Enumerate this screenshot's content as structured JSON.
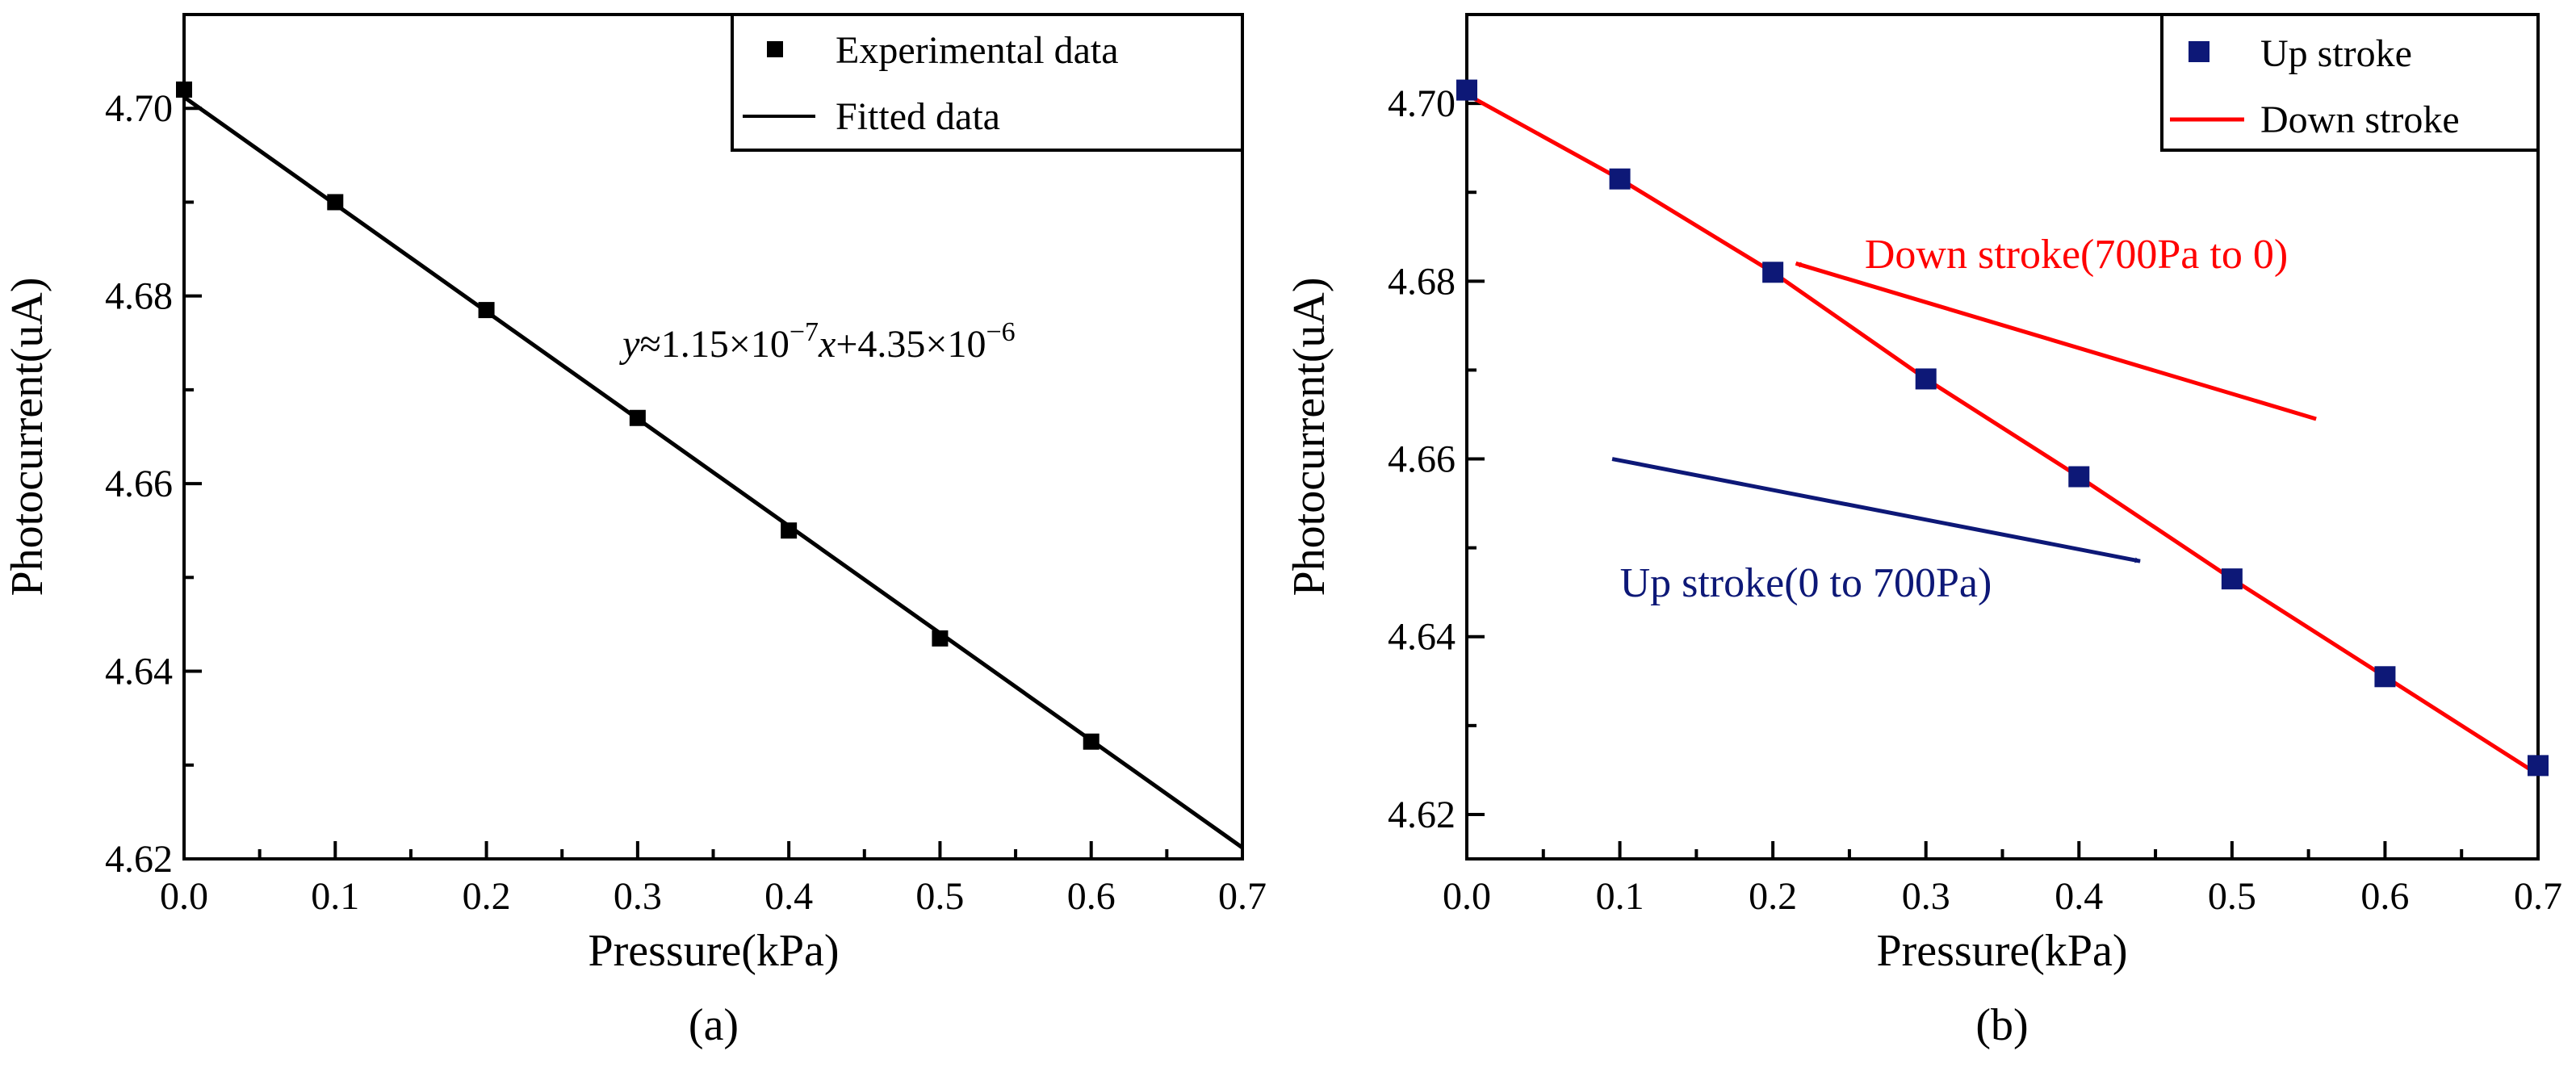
{
  "chart_data": [
    {
      "type": "scatter",
      "panel_label": "(a)",
      "xlabel": "Pressure(kPa)",
      "ylabel": "Photocurrent(uA)",
      "xlim": [
        0.0,
        0.7
      ],
      "ylim": [
        4.62,
        4.71
      ],
      "xticks": [
        0.0,
        0.1,
        0.2,
        0.3,
        0.4,
        0.5,
        0.6,
        0.7
      ],
      "xtick_labels": [
        "0.0",
        "0.1",
        "0.2",
        "0.3",
        "0.4",
        "0.5",
        "0.6",
        "0.7"
      ],
      "yticks": [
        4.62,
        4.64,
        4.66,
        4.68,
        4.7
      ],
      "ytick_labels": [
        "4.62",
        "4.64",
        "4.66",
        "4.68",
        "4.70"
      ],
      "series": [
        {
          "name": "Experimental data",
          "kind": "points",
          "color": "#000000",
          "x": [
            0.0,
            0.1,
            0.2,
            0.3,
            0.4,
            0.5,
            0.6
          ],
          "y": [
            4.702,
            4.69,
            4.6785,
            4.667,
            4.655,
            4.6435,
            4.6325
          ]
        },
        {
          "name": "Fitted data",
          "kind": "line",
          "color": "#000000",
          "x": [
            0.0,
            0.7
          ],
          "y": [
            4.7012,
            4.6212
          ]
        }
      ],
      "legend_position": "top-right",
      "annotations": [
        {
          "kind": "equation",
          "parts": {
            "y": "y",
            "approx": "≈1.15×10",
            "exp1": "−7",
            "x": "x",
            "plus": "+4.35×10",
            "exp2": "−6"
          },
          "x": 0.29,
          "y": 4.6735
        }
      ]
    },
    {
      "type": "scatter",
      "panel_label": "(b)",
      "xlabel": "Pressure(kPa)",
      "ylabel": "Photocurrent(uA)",
      "xlim": [
        0.0,
        0.7
      ],
      "ylim": [
        4.615,
        4.71
      ],
      "xticks": [
        0.0,
        0.1,
        0.2,
        0.3,
        0.4,
        0.5,
        0.6,
        0.7
      ],
      "xtick_labels": [
        "0.0",
        "0.1",
        "0.2",
        "0.3",
        "0.4",
        "0.5",
        "0.6",
        "0.7"
      ],
      "yticks": [
        4.62,
        4.64,
        4.66,
        4.68,
        4.7
      ],
      "ytick_labels": [
        "4.62",
        "4.64",
        "4.66",
        "4.68",
        "4.70"
      ],
      "series": [
        {
          "name": "Up stroke",
          "kind": "points",
          "color": "#0d1877",
          "x": [
            0.0,
            0.1,
            0.2,
            0.3,
            0.4,
            0.5,
            0.6,
            0.7
          ],
          "y": [
            4.7015,
            4.6915,
            4.681,
            4.669,
            4.658,
            4.6465,
            4.6355,
            4.6255
          ]
        },
        {
          "name": "Down stroke",
          "kind": "line",
          "color": "#ff0000",
          "x": [
            0.0,
            0.1,
            0.2,
            0.3,
            0.4,
            0.5,
            0.6,
            0.7
          ],
          "y": [
            4.701,
            4.6915,
            4.681,
            4.669,
            4.658,
            4.6465,
            4.6355,
            4.6245
          ]
        }
      ],
      "legend_position": "top-right",
      "annotations": [
        {
          "kind": "arrow",
          "text": "Down stroke(700Pa to 0)",
          "color": "#ff0000",
          "from": [
            0.555,
            4.6645
          ],
          "to": [
            0.215,
            4.682
          ],
          "text_x": 0.26,
          "text_y": 4.6815
        },
        {
          "kind": "arrow",
          "text": "Up stroke(0 to 700Pa)",
          "color": "#0d1877",
          "from": [
            0.095,
            4.66
          ],
          "to": [
            0.44,
            4.6485
          ],
          "text_x": 0.1,
          "text_y": 4.6445
        }
      ]
    }
  ]
}
